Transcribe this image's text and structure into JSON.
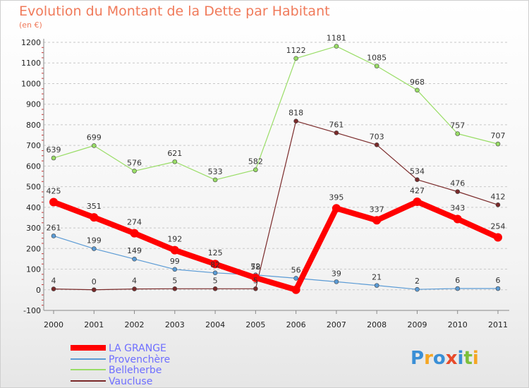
{
  "chart_data": {
    "type": "line",
    "title": "Evolution du Montant de la Dette par Habitant",
    "subtitle": "(en €)",
    "x": [
      "2000",
      "2001",
      "2002",
      "2003",
      "2004",
      "2005",
      "2006",
      "2007",
      "2008",
      "2009",
      "2010",
      "2011"
    ],
    "ylim": [
      -100,
      1200
    ],
    "yticks": [
      -100,
      0,
      100,
      200,
      300,
      400,
      500,
      600,
      700,
      800,
      900,
      1000,
      1100,
      1200
    ],
    "grid": "horizontal dashed",
    "legend_position": "bottom-left",
    "series": [
      {
        "name": "LA GRANGE",
        "color": "#ff0000",
        "values": [
          425,
          351,
          274,
          192,
          125,
          58,
          0,
          395,
          337,
          427,
          343,
          254
        ]
      },
      {
        "name": "Provenchère",
        "color": "#5b9bd5",
        "values": [
          261,
          199,
          149,
          99,
          82,
          72,
          56,
          39,
          21,
          2,
          6,
          6
        ]
      },
      {
        "name": "Belleherbe",
        "color": "#99dd66",
        "values": [
          639,
          699,
          576,
          621,
          533,
          582,
          1122,
          1181,
          1085,
          968,
          757,
          707
        ]
      },
      {
        "name": "Vaucluse",
        "color": "#7a2a2a",
        "values": [
          4,
          0,
          4,
          5,
          5,
          5,
          818,
          761,
          703,
          534,
          476,
          412
        ]
      }
    ],
    "data_labels": [
      [
        "425",
        "351",
        "274",
        "192",
        "125",
        "58",
        "",
        "395",
        "337",
        "427",
        "343",
        "254"
      ],
      [
        "261",
        "199",
        "149",
        "99",
        "82",
        "72",
        "56",
        "39",
        "21",
        "2",
        "6",
        "6"
      ],
      [
        "639",
        "699",
        "576",
        "621",
        "533",
        "582",
        "1122",
        "1181",
        "1085",
        "968",
        "757",
        "707"
      ],
      [
        "4",
        "0",
        "4",
        "5",
        "5",
        "5",
        "818",
        "761",
        "703",
        "534",
        "476",
        "412"
      ]
    ]
  },
  "logo": {
    "text": "Proxiti",
    "letters": [
      "P",
      "r",
      "o",
      "x",
      "i",
      "t",
      "i"
    ],
    "colors": [
      "#3a8fd6",
      "#f5a623",
      "#3a8fd6",
      "#e84a2a",
      "#3a8fd6",
      "#7cbf3a",
      "#f5a623"
    ]
  }
}
